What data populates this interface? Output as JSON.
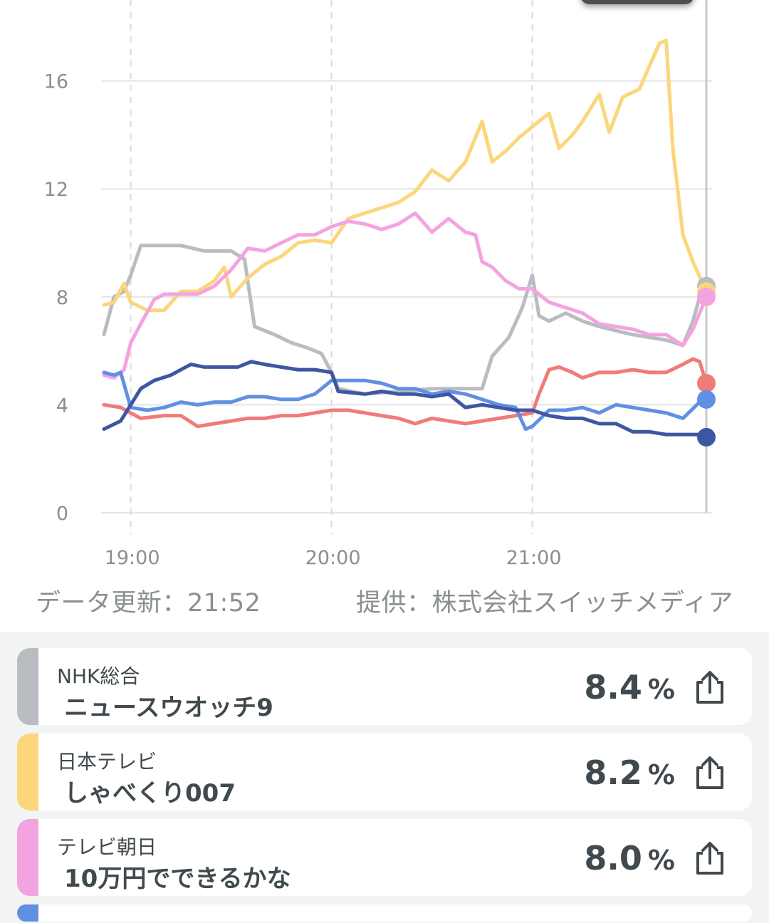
{
  "footer": {
    "data_updated": "データ更新：21:52",
    "credit": "提供：株式会社スイッチメディア"
  },
  "chart_data": {
    "type": "line",
    "x_axis": {
      "ticks": [
        "19:00",
        "20:00",
        "21:00"
      ],
      "range": [
        "18:52",
        "21:52"
      ]
    },
    "y_axis": {
      "ticks": [
        0,
        4,
        8,
        12,
        16
      ],
      "range": [
        0,
        17.6
      ]
    },
    "grid": true,
    "series": [
      {
        "name": "NHK総合",
        "color": "#b9bcc1",
        "points": [
          [
            "18:52",
            6.6
          ],
          [
            "18:55",
            8.0
          ],
          [
            "18:58",
            8.2
          ],
          [
            "19:00",
            8.8
          ],
          [
            "19:03",
            9.9
          ],
          [
            "19:08",
            9.9
          ],
          [
            "19:15",
            9.9
          ],
          [
            "19:22",
            9.7
          ],
          [
            "19:30",
            9.7
          ],
          [
            "19:34",
            9.4
          ],
          [
            "19:37",
            6.9
          ],
          [
            "19:43",
            6.6
          ],
          [
            "19:48",
            6.3
          ],
          [
            "19:53",
            6.1
          ],
          [
            "19:57",
            5.9
          ],
          [
            "20:00",
            5.2
          ],
          [
            "20:02",
            4.6
          ],
          [
            "20:10",
            4.4
          ],
          [
            "20:20",
            4.5
          ],
          [
            "20:30",
            4.6
          ],
          [
            "20:40",
            4.6
          ],
          [
            "20:45",
            4.6
          ],
          [
            "20:48",
            5.8
          ],
          [
            "20:53",
            6.5
          ],
          [
            "20:57",
            7.6
          ],
          [
            "21:00",
            8.8
          ],
          [
            "21:02",
            7.3
          ],
          [
            "21:05",
            7.1
          ],
          [
            "21:10",
            7.4
          ],
          [
            "21:15",
            7.1
          ],
          [
            "21:20",
            6.9
          ],
          [
            "21:30",
            6.6
          ],
          [
            "21:40",
            6.4
          ],
          [
            "21:45",
            6.2
          ],
          [
            "21:48",
            7.1
          ],
          [
            "21:50",
            8.0
          ],
          [
            "21:52",
            8.4
          ]
        ]
      },
      {
        "name": "日本テレビ",
        "color": "#fbd67a",
        "points": [
          [
            "18:52",
            7.7
          ],
          [
            "18:55",
            7.8
          ],
          [
            "18:58",
            8.5
          ],
          [
            "19:00",
            7.8
          ],
          [
            "19:05",
            7.5
          ],
          [
            "19:10",
            7.5
          ],
          [
            "19:15",
            8.2
          ],
          [
            "19:20",
            8.2
          ],
          [
            "19:25",
            8.6
          ],
          [
            "19:28",
            9.1
          ],
          [
            "19:30",
            8.0
          ],
          [
            "19:35",
            8.7
          ],
          [
            "19:40",
            9.2
          ],
          [
            "19:45",
            9.5
          ],
          [
            "19:50",
            10.0
          ],
          [
            "19:55",
            10.1
          ],
          [
            "20:00",
            10.0
          ],
          [
            "20:05",
            10.9
          ],
          [
            "20:10",
            11.1
          ],
          [
            "20:15",
            11.3
          ],
          [
            "20:20",
            11.5
          ],
          [
            "20:25",
            11.9
          ],
          [
            "20:30",
            12.7
          ],
          [
            "20:35",
            12.3
          ],
          [
            "20:40",
            13.0
          ],
          [
            "20:45",
            14.5
          ],
          [
            "20:48",
            13.0
          ],
          [
            "20:52",
            13.4
          ],
          [
            "20:56",
            13.9
          ],
          [
            "21:00",
            14.3
          ],
          [
            "21:05",
            14.8
          ],
          [
            "21:08",
            13.5
          ],
          [
            "21:12",
            14.0
          ],
          [
            "21:15",
            14.5
          ],
          [
            "21:20",
            15.5
          ],
          [
            "21:23",
            14.1
          ],
          [
            "21:27",
            15.4
          ],
          [
            "21:32",
            15.7
          ],
          [
            "21:38",
            17.4
          ],
          [
            "21:40",
            17.5
          ],
          [
            "21:42",
            13.5
          ],
          [
            "21:45",
            10.3
          ],
          [
            "21:48",
            9.3
          ],
          [
            "21:52",
            8.2
          ]
        ]
      },
      {
        "name": "テレビ朝日",
        "color": "#f4a3e1",
        "points": [
          [
            "18:52",
            5.1
          ],
          [
            "18:55",
            5.0
          ],
          [
            "18:58",
            5.3
          ],
          [
            "19:00",
            6.3
          ],
          [
            "19:03",
            7.0
          ],
          [
            "19:07",
            7.9
          ],
          [
            "19:10",
            8.1
          ],
          [
            "19:20",
            8.1
          ],
          [
            "19:25",
            8.4
          ],
          [
            "19:30",
            9.0
          ],
          [
            "19:35",
            9.8
          ],
          [
            "19:40",
            9.7
          ],
          [
            "19:45",
            10.0
          ],
          [
            "19:50",
            10.3
          ],
          [
            "19:55",
            10.3
          ],
          [
            "20:00",
            10.6
          ],
          [
            "20:05",
            10.8
          ],
          [
            "20:10",
            10.7
          ],
          [
            "20:15",
            10.5
          ],
          [
            "20:20",
            10.7
          ],
          [
            "20:25",
            11.1
          ],
          [
            "20:30",
            10.4
          ],
          [
            "20:35",
            10.9
          ],
          [
            "20:40",
            10.4
          ],
          [
            "20:43",
            10.3
          ],
          [
            "20:45",
            9.3
          ],
          [
            "20:48",
            9.1
          ],
          [
            "20:52",
            8.6
          ],
          [
            "20:56",
            8.3
          ],
          [
            "21:00",
            8.3
          ],
          [
            "21:05",
            7.8
          ],
          [
            "21:10",
            7.6
          ],
          [
            "21:15",
            7.4
          ],
          [
            "21:20",
            7.0
          ],
          [
            "21:25",
            6.9
          ],
          [
            "21:30",
            6.8
          ],
          [
            "21:35",
            6.6
          ],
          [
            "21:40",
            6.6
          ],
          [
            "21:45",
            6.2
          ],
          [
            "21:48",
            6.8
          ],
          [
            "21:52",
            8.0
          ]
        ]
      },
      {
        "color": "#f07b78",
        "points": [
          [
            "18:52",
            4.0
          ],
          [
            "18:57",
            3.9
          ],
          [
            "19:00",
            3.7
          ],
          [
            "19:03",
            3.5
          ],
          [
            "19:10",
            3.6
          ],
          [
            "19:15",
            3.6
          ],
          [
            "19:20",
            3.2
          ],
          [
            "19:25",
            3.3
          ],
          [
            "19:30",
            3.4
          ],
          [
            "19:35",
            3.5
          ],
          [
            "19:40",
            3.5
          ],
          [
            "19:45",
            3.6
          ],
          [
            "19:50",
            3.6
          ],
          [
            "19:55",
            3.7
          ],
          [
            "20:00",
            3.8
          ],
          [
            "20:05",
            3.8
          ],
          [
            "20:10",
            3.7
          ],
          [
            "20:15",
            3.6
          ],
          [
            "20:20",
            3.5
          ],
          [
            "20:25",
            3.3
          ],
          [
            "20:30",
            3.5
          ],
          [
            "20:35",
            3.4
          ],
          [
            "20:40",
            3.3
          ],
          [
            "20:45",
            3.4
          ],
          [
            "20:50",
            3.5
          ],
          [
            "20:55",
            3.6
          ],
          [
            "21:00",
            3.7
          ],
          [
            "21:02",
            4.4
          ],
          [
            "21:05",
            5.3
          ],
          [
            "21:08",
            5.4
          ],
          [
            "21:12",
            5.2
          ],
          [
            "21:15",
            5.0
          ],
          [
            "21:20",
            5.2
          ],
          [
            "21:25",
            5.2
          ],
          [
            "21:30",
            5.3
          ],
          [
            "21:35",
            5.2
          ],
          [
            "21:40",
            5.2
          ],
          [
            "21:45",
            5.5
          ],
          [
            "21:48",
            5.7
          ],
          [
            "21:50",
            5.6
          ],
          [
            "21:52",
            4.8
          ]
        ]
      },
      {
        "color": "#6090e3",
        "points": [
          [
            "18:52",
            5.2
          ],
          [
            "18:55",
            5.1
          ],
          [
            "18:57",
            5.2
          ],
          [
            "19:00",
            3.9
          ],
          [
            "19:05",
            3.8
          ],
          [
            "19:10",
            3.9
          ],
          [
            "19:15",
            4.1
          ],
          [
            "19:20",
            4.0
          ],
          [
            "19:25",
            4.1
          ],
          [
            "19:30",
            4.1
          ],
          [
            "19:35",
            4.3
          ],
          [
            "19:40",
            4.3
          ],
          [
            "19:45",
            4.2
          ],
          [
            "19:50",
            4.2
          ],
          [
            "19:55",
            4.4
          ],
          [
            "20:00",
            4.9
          ],
          [
            "20:05",
            4.9
          ],
          [
            "20:10",
            4.9
          ],
          [
            "20:15",
            4.8
          ],
          [
            "20:20",
            4.6
          ],
          [
            "20:25",
            4.6
          ],
          [
            "20:30",
            4.4
          ],
          [
            "20:35",
            4.5
          ],
          [
            "20:40",
            4.4
          ],
          [
            "20:45",
            4.2
          ],
          [
            "20:50",
            4.0
          ],
          [
            "20:55",
            3.9
          ],
          [
            "20:58",
            3.1
          ],
          [
            "21:00",
            3.2
          ],
          [
            "21:05",
            3.8
          ],
          [
            "21:10",
            3.8
          ],
          [
            "21:15",
            3.9
          ],
          [
            "21:20",
            3.7
          ],
          [
            "21:25",
            4.0
          ],
          [
            "21:30",
            3.9
          ],
          [
            "21:35",
            3.8
          ],
          [
            "21:40",
            3.7
          ],
          [
            "21:45",
            3.5
          ],
          [
            "21:50",
            4.1
          ],
          [
            "21:52",
            4.2
          ]
        ]
      },
      {
        "color": "#3e57a3",
        "points": [
          [
            "18:52",
            3.1
          ],
          [
            "18:57",
            3.4
          ],
          [
            "19:00",
            4.0
          ],
          [
            "19:03",
            4.6
          ],
          [
            "19:07",
            4.9
          ],
          [
            "19:12",
            5.1
          ],
          [
            "19:15",
            5.3
          ],
          [
            "19:18",
            5.5
          ],
          [
            "19:22",
            5.4
          ],
          [
            "19:27",
            5.4
          ],
          [
            "19:32",
            5.4
          ],
          [
            "19:36",
            5.6
          ],
          [
            "19:40",
            5.5
          ],
          [
            "19:45",
            5.4
          ],
          [
            "19:50",
            5.3
          ],
          [
            "19:55",
            5.3
          ],
          [
            "20:00",
            5.2
          ],
          [
            "20:02",
            4.5
          ],
          [
            "20:10",
            4.4
          ],
          [
            "20:15",
            4.5
          ],
          [
            "20:20",
            4.4
          ],
          [
            "20:25",
            4.4
          ],
          [
            "20:30",
            4.3
          ],
          [
            "20:35",
            4.4
          ],
          [
            "20:40",
            3.9
          ],
          [
            "20:45",
            4.0
          ],
          [
            "20:50",
            3.9
          ],
          [
            "20:55",
            3.8
          ],
          [
            "21:00",
            3.8
          ],
          [
            "21:05",
            3.6
          ],
          [
            "21:10",
            3.5
          ],
          [
            "21:15",
            3.5
          ],
          [
            "21:20",
            3.3
          ],
          [
            "21:25",
            3.3
          ],
          [
            "21:30",
            3.0
          ],
          [
            "21:35",
            3.0
          ],
          [
            "21:40",
            2.9
          ],
          [
            "21:45",
            2.9
          ],
          [
            "21:50",
            2.9
          ],
          [
            "21:52",
            2.8
          ]
        ]
      }
    ]
  },
  "channels": [
    {
      "channel": "NHK総合",
      "program": "ニュースウオッチ9",
      "rating": "8.4",
      "unit": "%",
      "color": "#b9bcc1",
      "share_icon": "share-icon"
    },
    {
      "channel": "日本テレビ",
      "program": "しゃべくり007",
      "rating": "8.2",
      "unit": "%",
      "color": "#fbd67a",
      "share_icon": "share-icon"
    },
    {
      "channel": "テレビ朝日",
      "program": "10万円でできるかな",
      "rating": "8.0",
      "unit": "%",
      "color": "#f4a3e1",
      "share_icon": "share-icon"
    },
    {
      "color": "#6090e3"
    }
  ]
}
